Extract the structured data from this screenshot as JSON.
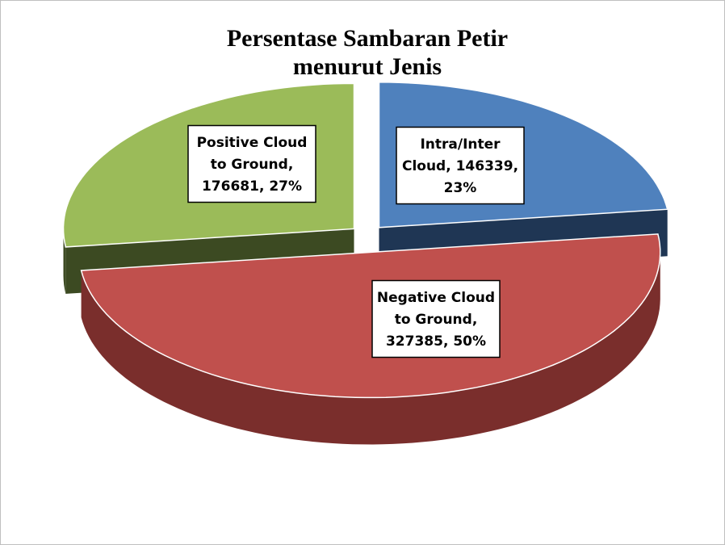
{
  "chart_data": {
    "type": "pie",
    "title": "Persentase Sambaran Petir",
    "subtitle": "menurut Jenis",
    "categories": [
      "Intra/Inter Cloud",
      "Negative Cloud to Ground",
      "Positive Cloud to Ground"
    ],
    "values": [
      23,
      50,
      27
    ],
    "value_labels": [
      "Intra/Inter Cloud, 146339, 23%",
      "Negative Cloud to Ground, 327385, 50%",
      "Positive Cloud to Ground, 176681, 27%"
    ],
    "colors": [
      "#4f81bd",
      "#c0504d",
      "#9bbb59"
    ],
    "side_colors": [
      "#1f3654",
      "#7a2e2c",
      "#3c4a22"
    ]
  }
}
